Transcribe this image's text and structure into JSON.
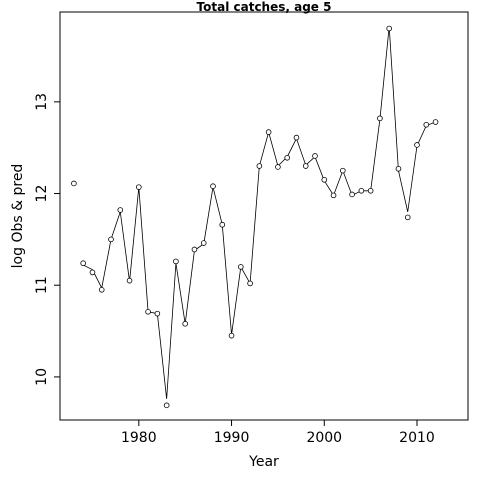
{
  "chart_data": {
    "type": "line",
    "title": "Total catches, age 5",
    "xlabel": "Year",
    "ylabel": "log Obs & pred",
    "xlim": [
      1971.5,
      2015.5
    ],
    "ylim": [
      9.53,
      13.98
    ],
    "x_ticks": [
      1980,
      1990,
      2000,
      2010
    ],
    "y_ticks": [
      10,
      11,
      12,
      13
    ],
    "grid": false,
    "series": [
      {
        "type": "line",
        "values": [
          [
            1974,
            11.22
          ],
          [
            1975,
            11.17
          ],
          [
            1976,
            10.97
          ],
          [
            1977,
            11.5
          ],
          [
            1978,
            11.8
          ],
          [
            1979,
            11.04
          ],
          [
            1980,
            12.07
          ],
          [
            1981,
            10.71
          ],
          [
            1982,
            10.69
          ],
          [
            1983,
            9.76
          ],
          [
            1984,
            11.24
          ],
          [
            1985,
            10.58
          ],
          [
            1986,
            11.38
          ],
          [
            1987,
            11.45
          ],
          [
            1988,
            12.07
          ],
          [
            1989,
            11.66
          ],
          [
            1990,
            10.46
          ],
          [
            1991,
            11.2
          ],
          [
            1992,
            11.02
          ],
          [
            1993,
            12.3
          ],
          [
            1994,
            12.67
          ],
          [
            1995,
            12.3
          ],
          [
            1996,
            12.4
          ],
          [
            1997,
            12.6
          ],
          [
            1998,
            12.31
          ],
          [
            1999,
            12.4
          ],
          [
            2000,
            12.14
          ],
          [
            2001,
            11.98
          ],
          [
            2002,
            12.25
          ],
          [
            2003,
            11.98
          ],
          [
            2004,
            12.03
          ],
          [
            2005,
            12.03
          ],
          [
            2006,
            12.81
          ],
          [
            2007,
            13.82
          ],
          [
            2008,
            12.25
          ],
          [
            2009,
            11.8
          ],
          [
            2010,
            12.52
          ],
          [
            2011,
            12.74
          ],
          [
            2012,
            12.78
          ]
        ]
      },
      {
        "type": "points",
        "values": [
          [
            1973,
            12.11
          ],
          [
            1974,
            11.24
          ],
          [
            1975,
            11.14
          ],
          [
            1976,
            10.95
          ],
          [
            1977,
            11.5
          ],
          [
            1978,
            11.82
          ],
          [
            1979,
            11.05
          ],
          [
            1980,
            12.07
          ],
          [
            1981,
            10.71
          ],
          [
            1982,
            10.69
          ],
          [
            1983,
            9.69
          ],
          [
            1984,
            11.26
          ],
          [
            1985,
            10.58
          ],
          [
            1986,
            11.39
          ],
          [
            1987,
            11.46
          ],
          [
            1988,
            12.08
          ],
          [
            1989,
            11.66
          ],
          [
            1990,
            10.45
          ],
          [
            1991,
            11.2
          ],
          [
            1992,
            11.02
          ],
          [
            1993,
            12.3
          ],
          [
            1994,
            12.67
          ],
          [
            1995,
            12.29
          ],
          [
            1996,
            12.39
          ],
          [
            1997,
            12.61
          ],
          [
            1998,
            12.3
          ],
          [
            1999,
            12.41
          ],
          [
            2000,
            12.15
          ],
          [
            2001,
            11.98
          ],
          [
            2002,
            12.25
          ],
          [
            2003,
            11.99
          ],
          [
            2004,
            12.03
          ],
          [
            2005,
            12.03
          ],
          [
            2006,
            12.82
          ],
          [
            2007,
            13.8
          ],
          [
            2008,
            12.27
          ],
          [
            2009,
            11.74
          ],
          [
            2010,
            12.53
          ],
          [
            2011,
            12.75
          ],
          [
            2012,
            12.78
          ]
        ]
      }
    ],
    "colors": {
      "line": "#000000",
      "points": "#000000",
      "background": "#ffffff"
    }
  }
}
